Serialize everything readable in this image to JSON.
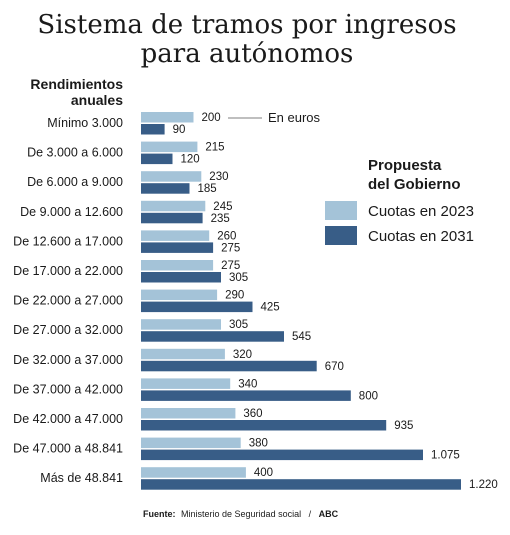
{
  "chart_data": {
    "type": "bar",
    "orientation": "horizontal",
    "title": [
      "Sistema de tramos por ingresos",
      "para autónomos"
    ],
    "category_header": [
      "Rendimientos",
      "anuales"
    ],
    "categories": [
      "Mínimo 3.000",
      "De 3.000 a 6.000",
      "De 6.000 a 9.000",
      "De 9.000 a 12.600",
      "De 12.600 a 17.000",
      "De 17.000 a 22.000",
      "De 22.000 a 27.000",
      "De 27.000 a 32.000",
      "De 32.000 a 37.000",
      "De 37.000 a 42.000",
      "De 42.000 a 47.000",
      "De 47.000 a 48.841",
      "Más de 48.841"
    ],
    "series": [
      {
        "name": "Cuotas en 2023",
        "color": "#a4c3d8",
        "values": [
          200,
          215,
          230,
          245,
          260,
          275,
          290,
          305,
          320,
          340,
          360,
          380,
          400
        ],
        "labels": [
          "200",
          "215",
          "230",
          "245",
          "260",
          "275",
          "290",
          "305",
          "320",
          "340",
          "360",
          "380",
          "400"
        ]
      },
      {
        "name": "Cuotas en 2031",
        "color": "#385d87",
        "values": [
          90,
          120,
          185,
          235,
          275,
          305,
          425,
          545,
          670,
          800,
          935,
          1075,
          1220
        ],
        "labels": [
          "90",
          "120",
          "185",
          "235",
          "275",
          "305",
          "425",
          "545",
          "670",
          "800",
          "935",
          "1.075",
          "1.220"
        ]
      }
    ],
    "annotation": "En euros",
    "legend": {
      "title": [
        "Propuesta",
        "del Gobierno"
      ],
      "placement": "right"
    },
    "grid": false,
    "source": {
      "label": "Fuente:",
      "text": "Ministerio de Seguridad social",
      "separator": "/",
      "brand": "ABC"
    }
  }
}
